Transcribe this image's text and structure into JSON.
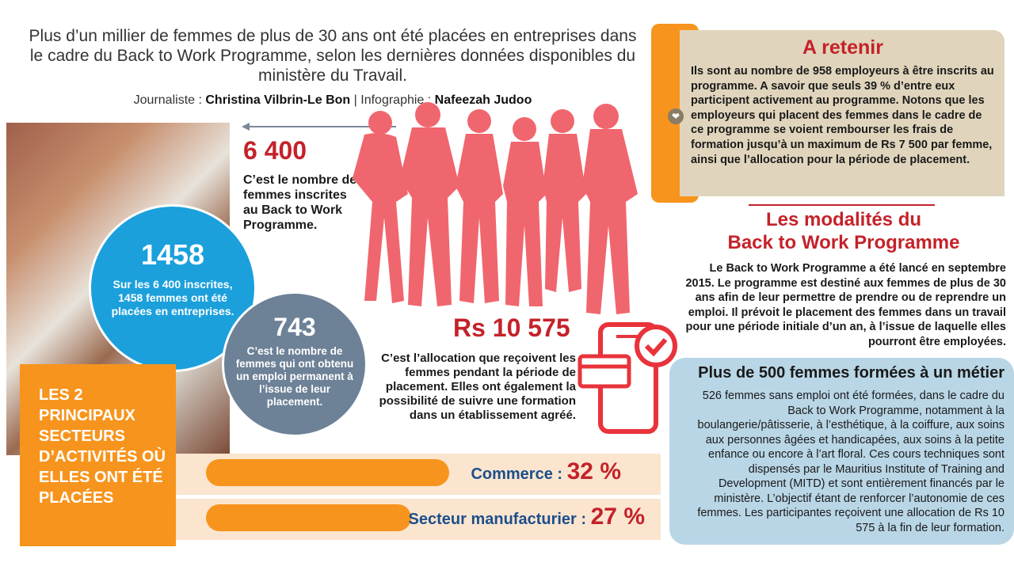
{
  "intro": "Plus d’un millier de femmes de plus de 30 ans ont été placées en entreprises dans le cadre du Back to Work Programme, selon les dernières données disponibles du ministère du Travail.",
  "credit": {
    "journalist_label": "Journaliste : ",
    "journalist": "Christina Vilbrin-Le Bon",
    "sep": " | ",
    "infographic_label": "Infographie : ",
    "infographic": "Nafeezah Judoo"
  },
  "stats": {
    "registered": {
      "value": "6 400",
      "text": "C’est le nombre de femmes inscrites au Back to Work Programme."
    },
    "placed": {
      "value": "1458",
      "text": "Sur les 6 400 inscrites, 1458 femmes ont été placées en entreprises."
    },
    "permanent": {
      "value": "743",
      "text": "C’est le nombre de femmes qui ont obtenu un emploi permanent à l’issue de leur placement."
    },
    "allowance": {
      "value": "Rs 10 575",
      "text": "C’est l’allocation que reçoivent les femmes pendant la période de placement. Elles ont également la possibilité de suivre une formation dans un établissement agréé."
    }
  },
  "sectors": {
    "title": "LES 2 PRINCIPAUX SECTEURS D’ACTIVITÉS OÙ ELLES ONT ÉTÉ PLACÉES",
    "items": [
      {
        "label": "Commerce : ",
        "pct": "32 %",
        "value": 32
      },
      {
        "label": "Secteur manufacturier : ",
        "pct": "27 %",
        "value": 27
      }
    ]
  },
  "retenir": {
    "title": "A retenir",
    "text": "Ils sont au nombre de 958 employeurs à être inscrits au programme. A savoir que seuls 39 % d’entre eux participent activement au programme. Notons que les employeurs qui placent des femmes dans le cadre de ce programme se voient rembourser les frais de formation jusqu’à un maximum de Rs 7 500 par femme, ainsi que l’allocation pour la période de placement."
  },
  "modalites": {
    "title_line1": "Les modalités du",
    "title_line2": "Back to Work Programme",
    "text": "Le Back to Work Programme a été lancé en septembre 2015. Le programme est destiné aux femmes de plus de 30 ans afin de leur permettre de prendre ou de reprendre un emploi. Il prévoit le placement des femmes dans un travail pour une période initiale d’un an, à l’issue de laquelle elles pourront être employées."
  },
  "formation": {
    "title": "Plus de 500 femmes formées à un métier",
    "text": "526 femmes sans emploi ont été formées, dans le cadre du Back to Work Programme, notamment à la boulangerie/pâtisserie, à l’esthétique, à la coiffure, aux soins aux personnes âgées et handicapées, aux soins à la petite enfance ou encore à l’art floral. Ces cours techniques sont dispensés par le Mauritius Institute of Training and Development (MITD) et sont entièrement financés par le ministère. L’objectif étant de renforcer l’autonomie de ces femmes. Les participantes reçoivent une allocation de Rs 10 575 à la fin de leur formation."
  },
  "colors": {
    "red": "#c4222a",
    "orange": "#f7941d",
    "blue": "#1ba0dc",
    "gray": "#6d8197",
    "pink": "#f0666e"
  }
}
